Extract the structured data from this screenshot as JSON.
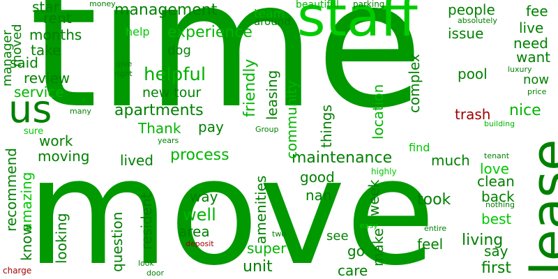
{
  "cloud": {
    "colors": {
      "dark_green": "#008000",
      "mid_green": "#00a000",
      "bright_green": "#00c800",
      "light_green": "#00e000",
      "dark_red": "#a00000",
      "red": "#c80000"
    },
    "words": [
      {
        "text": "time",
        "color": "#009900",
        "vertical": false
      },
      {
        "text": "move",
        "color": "#009900",
        "vertical": false
      },
      {
        "text": "staff",
        "color": "#00cc00",
        "vertical": false
      },
      {
        "text": "lease",
        "color": "#008000",
        "vertical": true
      },
      {
        "text": "us",
        "color": "#008000",
        "vertical": false
      },
      {
        "text": "helpful",
        "color": "#00b000",
        "vertical": false
      },
      {
        "text": "apartments",
        "color": "#008000",
        "vertical": false
      },
      {
        "text": "management",
        "color": "#008000",
        "vertical": false
      },
      {
        "text": "experience",
        "color": "#00b400",
        "vertical": false
      },
      {
        "text": "maintenance",
        "color": "#008000",
        "vertical": false
      },
      {
        "text": "process",
        "color": "#00b400",
        "vertical": false
      },
      {
        "text": "new tour",
        "color": "#008000",
        "vertical": false
      },
      {
        "text": "Thank",
        "color": "#00b400",
        "vertical": false
      },
      {
        "text": "people",
        "color": "#008000",
        "vertical": false
      },
      {
        "text": "live",
        "color": "#008000",
        "vertical": false
      },
      {
        "text": "fee",
        "color": "#008000",
        "vertical": false
      },
      {
        "text": "need",
        "color": "#008000",
        "vertical": false
      },
      {
        "text": "want",
        "color": "#008000",
        "vertical": false
      },
      {
        "text": "issue",
        "color": "#008000",
        "vertical": false
      },
      {
        "text": "pool",
        "color": "#008000",
        "vertical": false
      },
      {
        "text": "now",
        "color": "#008000",
        "vertical": false
      },
      {
        "text": "nice",
        "color": "#00b400",
        "vertical": false
      },
      {
        "text": "trash",
        "color": "#a00000",
        "vertical": false
      },
      {
        "text": "love",
        "color": "#00c800",
        "vertical": false
      },
      {
        "text": "clean",
        "color": "#008000",
        "vertical": false
      },
      {
        "text": "back",
        "color": "#008000",
        "vertical": false
      },
      {
        "text": "best",
        "color": "#00c800",
        "vertical": false
      },
      {
        "text": "living",
        "color": "#008000",
        "vertical": false
      },
      {
        "text": "say",
        "color": "#008000",
        "vertical": false
      },
      {
        "text": "first",
        "color": "#008000",
        "vertical": false
      },
      {
        "text": "feel",
        "color": "#008000",
        "vertical": false
      },
      {
        "text": "took",
        "color": "#008000",
        "vertical": false
      },
      {
        "text": "much",
        "color": "#008000",
        "vertical": false
      },
      {
        "text": "find",
        "color": "#00c800",
        "vertical": false
      },
      {
        "text": "good",
        "color": "#008000",
        "vertical": false
      },
      {
        "text": "nan",
        "color": "#008000",
        "vertical": false
      },
      {
        "text": "see",
        "color": "#008000",
        "vertical": false
      },
      {
        "text": "go",
        "color": "#008000",
        "vertical": false
      },
      {
        "text": "care",
        "color": "#008000",
        "vertical": false
      },
      {
        "text": "unit",
        "color": "#008000",
        "vertical": false
      },
      {
        "text": "super",
        "color": "#00b400",
        "vertical": false
      },
      {
        "text": "area",
        "color": "#008000",
        "vertical": false
      },
      {
        "text": "well",
        "color": "#00b400",
        "vertical": false
      },
      {
        "text": "way",
        "color": "#008000",
        "vertical": false
      },
      {
        "text": "lived",
        "color": "#008000",
        "vertical": false
      },
      {
        "text": "pay",
        "color": "#008000",
        "vertical": false
      },
      {
        "text": "work",
        "color": "#008000",
        "vertical": false
      },
      {
        "text": "moving",
        "color": "#008000",
        "vertical": false
      },
      {
        "text": "service",
        "color": "#00b400",
        "vertical": false
      },
      {
        "text": "review",
        "color": "#008000",
        "vertical": false
      },
      {
        "text": "said",
        "color": "#008000",
        "vertical": false
      },
      {
        "text": "take",
        "color": "#008000",
        "vertical": false
      },
      {
        "text": "months",
        "color": "#008000",
        "vertical": false
      },
      {
        "text": "rent",
        "color": "#008000",
        "vertical": false
      },
      {
        "text": "star",
        "color": "#008000",
        "vertical": false
      },
      {
        "text": "team",
        "color": "#00b400",
        "vertical": false
      },
      {
        "text": "help",
        "color": "#00c800",
        "vertical": false
      },
      {
        "text": "dog",
        "color": "#008000",
        "vertical": false
      },
      {
        "text": "around",
        "color": "#008000",
        "vertical": false
      },
      {
        "text": "beautiful",
        "color": "#00b400",
        "vertical": false
      },
      {
        "text": "parking",
        "color": "#008000",
        "vertical": false
      },
      {
        "text": "absolutely",
        "color": "#008000",
        "vertical": false
      },
      {
        "text": "money",
        "color": "#008000",
        "vertical": false
      },
      {
        "text": "luxury",
        "color": "#008000",
        "vertical": false
      },
      {
        "text": "price",
        "color": "#008000",
        "vertical": false
      },
      {
        "text": "building",
        "color": "#00b400",
        "vertical": false
      },
      {
        "text": "tenant",
        "color": "#008000",
        "vertical": false
      },
      {
        "text": "highly",
        "color": "#00c800",
        "vertical": false
      },
      {
        "text": "nothing",
        "color": "#008000",
        "vertical": false
      },
      {
        "text": "entire",
        "color": "#008000",
        "vertical": false
      },
      {
        "text": "easy",
        "color": "#00c800",
        "vertical": false
      },
      {
        "text": "two",
        "color": "#008000",
        "vertical": false
      },
      {
        "text": "deposit",
        "color": "#a00000",
        "vertical": false
      },
      {
        "text": "look",
        "color": "#008000",
        "vertical": false
      },
      {
        "text": "door",
        "color": "#008000",
        "vertical": false
      },
      {
        "text": "charge",
        "color": "#a00000",
        "vertical": false
      },
      {
        "text": "give",
        "color": "#008000",
        "vertical": false
      },
      {
        "text": "right",
        "color": "#008000",
        "vertical": false
      },
      {
        "text": "many",
        "color": "#008000",
        "vertical": false
      },
      {
        "text": "sure",
        "color": "#00c800",
        "vertical": false
      },
      {
        "text": "years",
        "color": "#008000",
        "vertical": false
      },
      {
        "text": "Group",
        "color": "#008000",
        "vertical": false
      },
      {
        "text": "complex",
        "color": "#008000",
        "vertical": true
      },
      {
        "text": "location",
        "color": "#00b400",
        "vertical": true
      },
      {
        "text": "things",
        "color": "#008000",
        "vertical": true
      },
      {
        "text": "leasing",
        "color": "#008000",
        "vertical": true
      },
      {
        "text": "community",
        "color": "#00b400",
        "vertical": true
      },
      {
        "text": "friendly",
        "color": "#00b400",
        "vertical": true
      },
      {
        "text": "amenities",
        "color": "#008000",
        "vertical": true
      },
      {
        "text": "resident",
        "color": "#008000",
        "vertical": true
      },
      {
        "text": "question",
        "color": "#008000",
        "vertical": true
      },
      {
        "text": "looking",
        "color": "#008000",
        "vertical": true
      },
      {
        "text": "recommend",
        "color": "#008000",
        "vertical": true
      },
      {
        "text": "amazing",
        "color": "#00c800",
        "vertical": true
      },
      {
        "text": "know",
        "color": "#008000",
        "vertical": true
      },
      {
        "text": "manager",
        "color": "#008000",
        "vertical": true
      },
      {
        "text": "moved",
        "color": "#008000",
        "vertical": true
      },
      {
        "text": "week",
        "color": "#008000",
        "vertical": true
      },
      {
        "text": "make",
        "color": "#008000",
        "vertical": true
      }
    ]
  }
}
